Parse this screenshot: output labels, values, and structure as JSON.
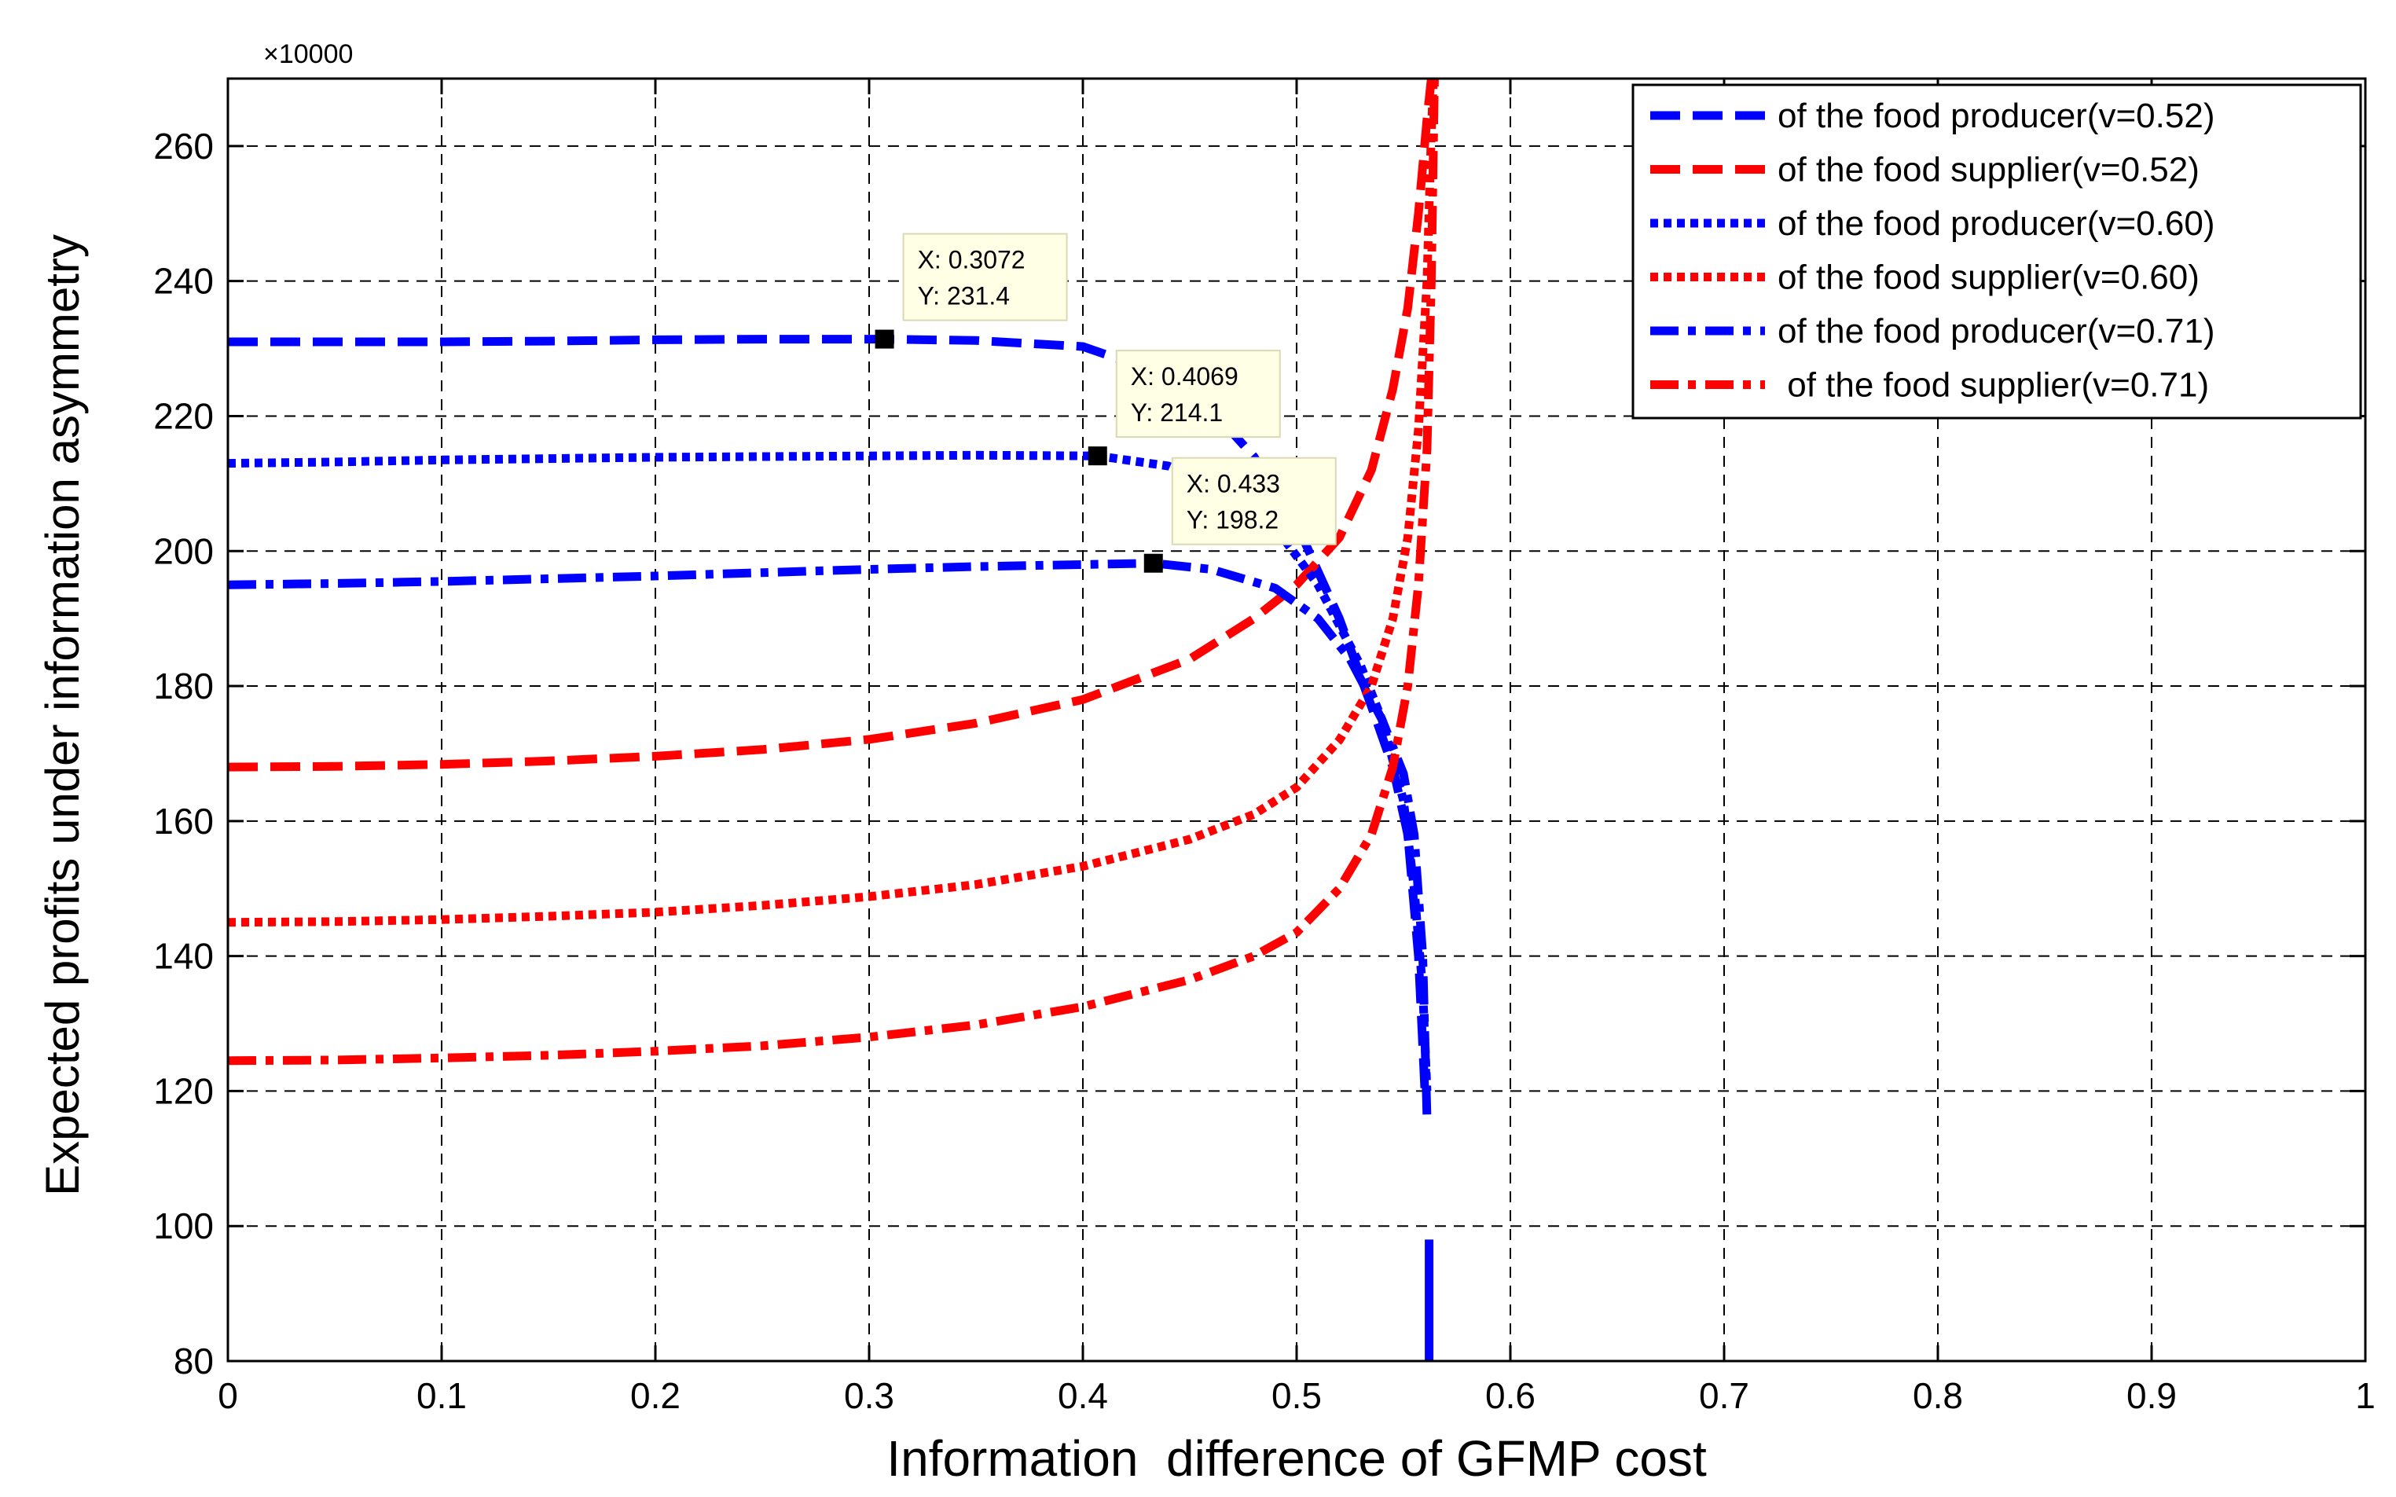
{
  "chart_data": {
    "type": "line",
    "title": "",
    "xlabel": "Information  difference of GFMP cost",
    "ylabel": "Expected profits under information asymmetry",
    "y_multiplier": "×10000",
    "xlim": [
      0,
      1
    ],
    "ylim": [
      80,
      270
    ],
    "xticks": [
      0,
      0.1,
      0.2,
      0.3,
      0.4,
      0.5,
      0.6,
      0.7,
      0.8,
      0.9,
      1
    ],
    "xtick_labels": [
      "0",
      "0.1",
      "0.2",
      "0.3",
      "0.4",
      "0.5",
      "0.6",
      "0.7",
      "0.8",
      "0.9",
      "1"
    ],
    "yticks": [
      80,
      100,
      120,
      140,
      160,
      180,
      200,
      220,
      240,
      260
    ],
    "ytick_labels": [
      "80",
      "100",
      "120",
      "140",
      "160",
      "180",
      "200",
      "220",
      "240",
      "260"
    ],
    "grid": true,
    "legend_position": "top-right",
    "series": [
      {
        "name": "of the food producer(v=0.52)",
        "color": "#0000ff",
        "dash": "dashed",
        "points": [
          [
            0,
            231
          ],
          [
            0.05,
            231
          ],
          [
            0.1,
            231
          ],
          [
            0.15,
            231.1
          ],
          [
            0.2,
            231.3
          ],
          [
            0.25,
            231.4
          ],
          [
            0.3,
            231.4
          ],
          [
            0.3072,
            231.4
          ],
          [
            0.35,
            231.2
          ],
          [
            0.4,
            230.3
          ],
          [
            0.43,
            227
          ],
          [
            0.46,
            221
          ],
          [
            0.48,
            214
          ],
          [
            0.5,
            204
          ],
          [
            0.52,
            190
          ],
          [
            0.535,
            177
          ],
          [
            0.545,
            168
          ],
          [
            0.552,
            158
          ],
          [
            0.557,
            140
          ],
          [
            0.56,
            120
          ]
        ]
      },
      {
        "name": "of the food supplier(v=0.52)",
        "color": "#ff0000",
        "dash": "dashed",
        "points": [
          [
            0,
            168
          ],
          [
            0.05,
            168.1
          ],
          [
            0.1,
            168.4
          ],
          [
            0.15,
            168.9
          ],
          [
            0.2,
            169.6
          ],
          [
            0.25,
            170.6
          ],
          [
            0.3,
            172.1
          ],
          [
            0.35,
            174.5
          ],
          [
            0.4,
            178
          ],
          [
            0.45,
            184
          ],
          [
            0.48,
            190
          ],
          [
            0.5,
            195
          ],
          [
            0.52,
            202
          ],
          [
            0.535,
            212
          ],
          [
            0.545,
            224
          ],
          [
            0.552,
            236
          ],
          [
            0.557,
            250
          ],
          [
            0.561,
            264
          ],
          [
            0.563,
            272
          ]
        ]
      },
      {
        "name": "of the food producer(v=0.60)",
        "color": "#0000ff",
        "dash": "dotted",
        "points": [
          [
            0,
            213
          ],
          [
            0.05,
            213.2
          ],
          [
            0.1,
            213.5
          ],
          [
            0.15,
            213.7
          ],
          [
            0.2,
            213.9
          ],
          [
            0.25,
            214
          ],
          [
            0.3,
            214.1
          ],
          [
            0.35,
            214.2
          ],
          [
            0.4069,
            214.1
          ],
          [
            0.44,
            212.6
          ],
          [
            0.47,
            208.5
          ],
          [
            0.49,
            203.5
          ],
          [
            0.51,
            195
          ],
          [
            0.53,
            183
          ],
          [
            0.54,
            175
          ],
          [
            0.55,
            163
          ],
          [
            0.555,
            150
          ],
          [
            0.559,
            135
          ],
          [
            0.561,
            120
          ]
        ]
      },
      {
        "name": "of the food supplier(v=0.60)",
        "color": "#ff0000",
        "dash": "dotted",
        "points": [
          [
            0,
            145
          ],
          [
            0.05,
            145.1
          ],
          [
            0.1,
            145.4
          ],
          [
            0.15,
            145.9
          ],
          [
            0.2,
            146.5
          ],
          [
            0.25,
            147.5
          ],
          [
            0.3,
            148.8
          ],
          [
            0.35,
            150.6
          ],
          [
            0.4,
            153.3
          ],
          [
            0.45,
            157.3
          ],
          [
            0.48,
            161
          ],
          [
            0.5,
            165
          ],
          [
            0.52,
            172
          ],
          [
            0.535,
            180
          ],
          [
            0.545,
            190
          ],
          [
            0.552,
            202
          ],
          [
            0.557,
            218
          ],
          [
            0.561,
            240
          ],
          [
            0.563,
            262
          ],
          [
            0.564,
            272
          ]
        ]
      },
      {
        "name": "of the food producer(v=0.71)",
        "color": "#0000ff",
        "dash": "dashdot",
        "points": [
          [
            0,
            195
          ],
          [
            0.05,
            195.2
          ],
          [
            0.1,
            195.5
          ],
          [
            0.15,
            195.9
          ],
          [
            0.2,
            196.3
          ],
          [
            0.25,
            196.8
          ],
          [
            0.3,
            197.3
          ],
          [
            0.35,
            197.7
          ],
          [
            0.4,
            198
          ],
          [
            0.433,
            198.2
          ],
          [
            0.46,
            197.3
          ],
          [
            0.49,
            194.5
          ],
          [
            0.51,
            190
          ],
          [
            0.525,
            184
          ],
          [
            0.54,
            175
          ],
          [
            0.55,
            167
          ],
          [
            0.555,
            158
          ],
          [
            0.559,
            140
          ],
          [
            0.561,
            116
          ]
        ]
      },
      {
        "name": " of the food supplier(v=0.71)",
        "color": "#ff0000",
        "dash": "dashdot",
        "points": [
          [
            0,
            124.5
          ],
          [
            0.05,
            124.6
          ],
          [
            0.1,
            124.9
          ],
          [
            0.15,
            125.3
          ],
          [
            0.2,
            125.9
          ],
          [
            0.25,
            126.7
          ],
          [
            0.3,
            128
          ],
          [
            0.35,
            129.8
          ],
          [
            0.4,
            132.5
          ],
          [
            0.45,
            136.5
          ],
          [
            0.48,
            140
          ],
          [
            0.5,
            143.5
          ],
          [
            0.52,
            150
          ],
          [
            0.535,
            158
          ],
          [
            0.545,
            168
          ],
          [
            0.552,
            180
          ],
          [
            0.557,
            195
          ],
          [
            0.561,
            215
          ],
          [
            0.563,
            240
          ],
          [
            0.5645,
            270
          ]
        ]
      }
    ],
    "markers": [
      {
        "x": 0.3072,
        "y": 231.4
      },
      {
        "x": 0.4069,
        "y": 214.1
      },
      {
        "x": 0.433,
        "y": 198.2
      }
    ],
    "annotations": [
      {
        "x_label": "X: 0.3072",
        "y_label": "Y: 231.4"
      },
      {
        "x_label": "X: 0.4069",
        "y_label": "Y: 214.1"
      },
      {
        "x_label": "X: 0.433",
        "y_label": "Y: 198.2"
      }
    ],
    "extra_segments": [
      {
        "color": "#0000ff",
        "points": [
          [
            0.562,
            98
          ],
          [
            0.562,
            80
          ]
        ]
      }
    ]
  }
}
